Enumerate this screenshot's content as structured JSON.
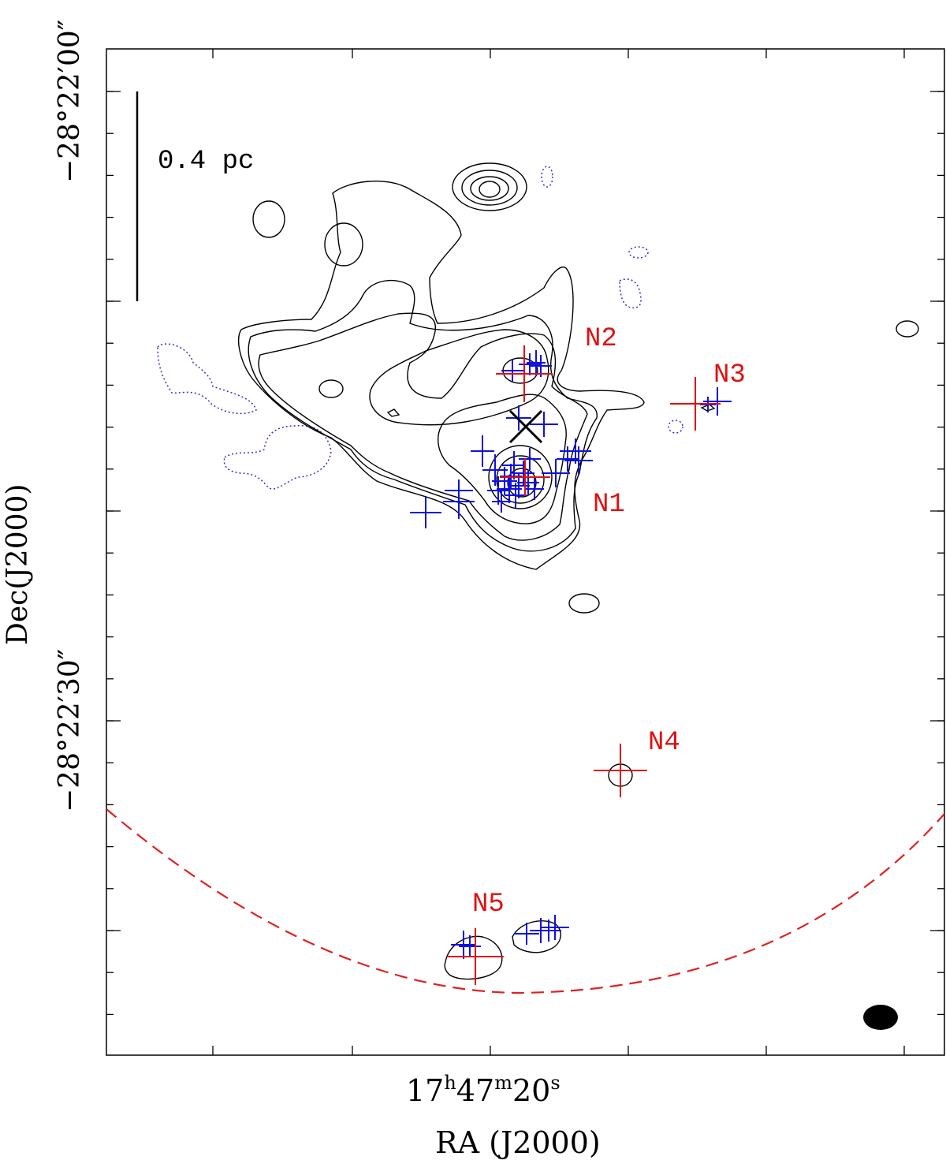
{
  "chart_data": {
    "type": "contour",
    "title": "",
    "xlabel": "RA (J2000)",
    "ylabel": "Dec(J2000)",
    "x_tick_label": {
      "h": "17",
      "m": "47",
      "s": "20"
    },
    "y_tick_labels": [
      "−28°22′00″",
      "−28°22′30″"
    ],
    "scale_bar_label": "0.4 pc",
    "sources": [
      {
        "name": "N1"
      },
      {
        "name": "N2"
      },
      {
        "name": "N3"
      },
      {
        "name": "N4"
      },
      {
        "name": "N5"
      }
    ],
    "legend": "none",
    "colors": {
      "contour_positive": "#000000",
      "contour_negative": "#3030d0",
      "red_markers": "#e01010",
      "blue_markers": "#1010e0",
      "primary_beam": "#e02020",
      "beam": "#000000"
    }
  }
}
